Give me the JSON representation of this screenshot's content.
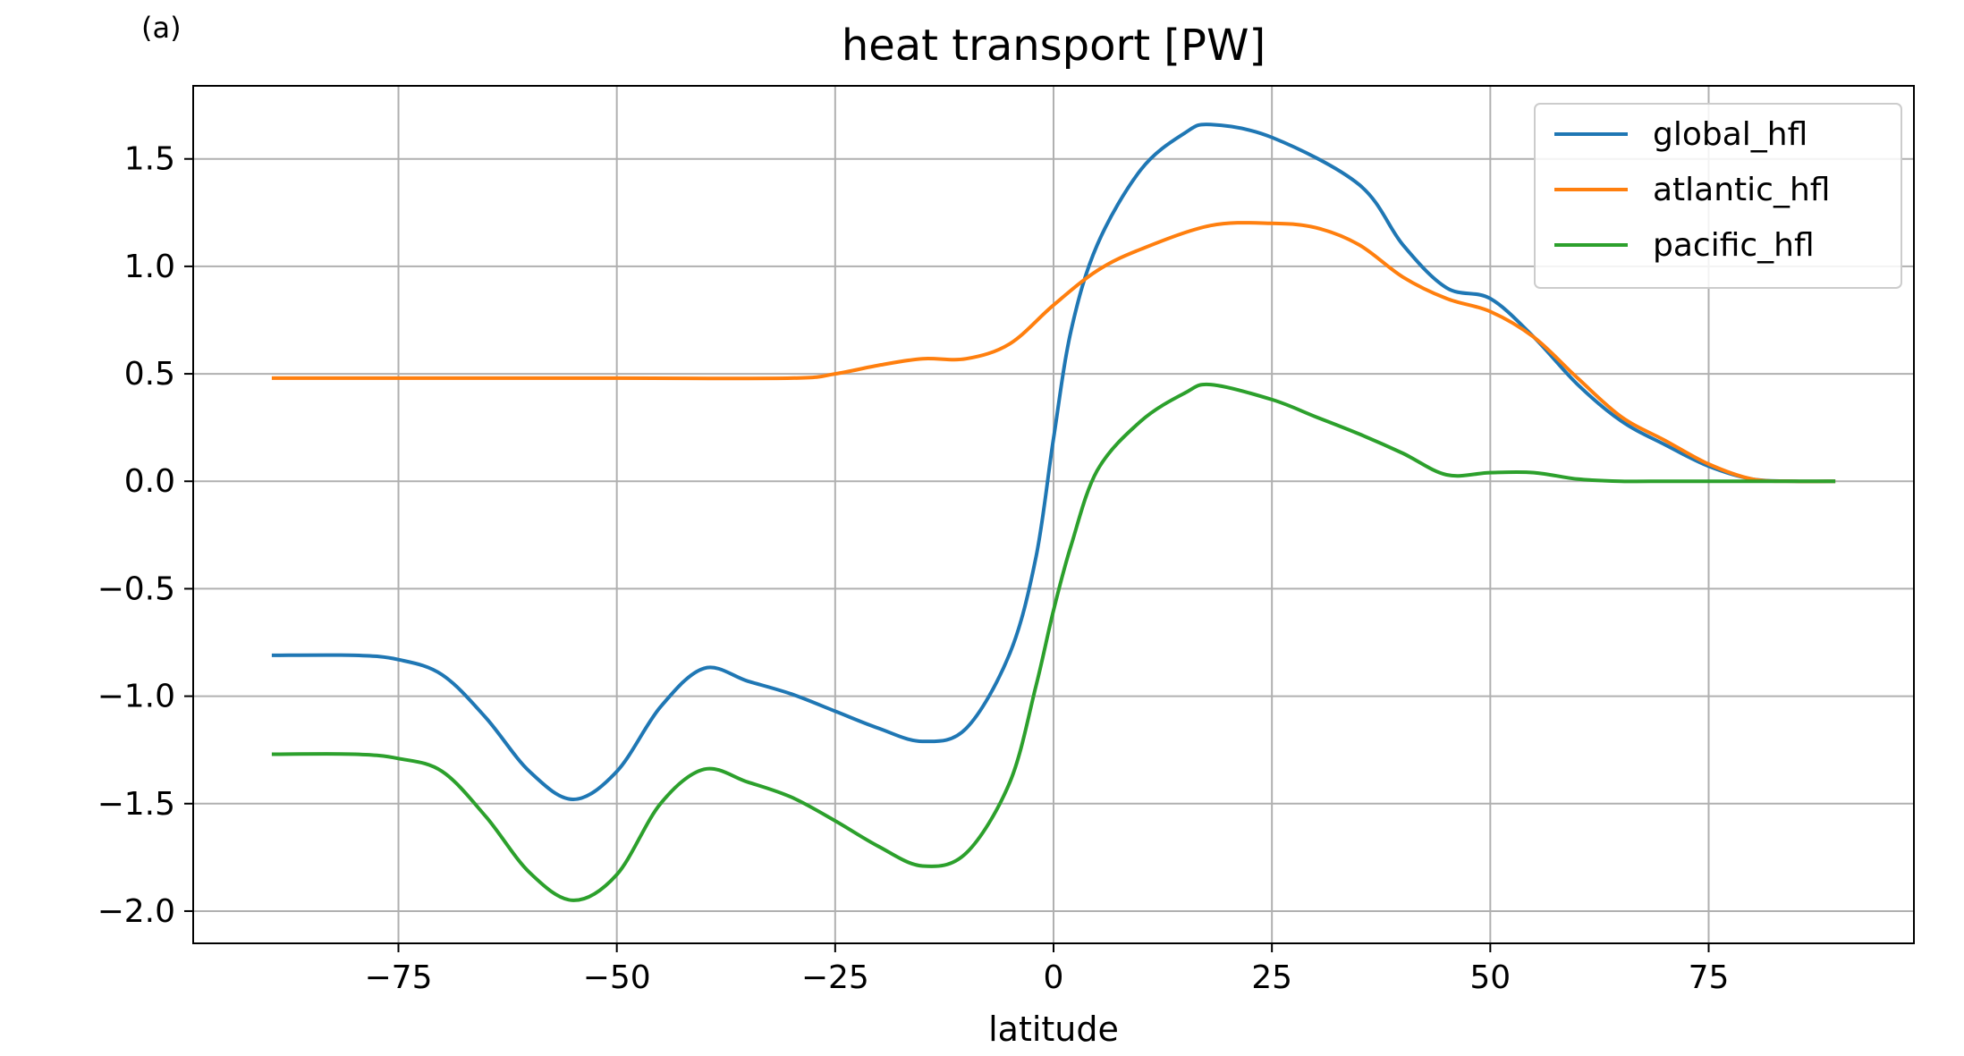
{
  "panel_label": "(a)",
  "chart_data": {
    "type": "line",
    "title": "heat transport [PW]",
    "xlabel": "latitude",
    "ylabel": "",
    "xlim": [
      -98.5,
      98.5
    ],
    "ylim": [
      -2.15,
      1.84
    ],
    "xticks": [
      -75,
      -50,
      -25,
      0,
      25,
      50,
      75
    ],
    "xtick_labels": [
      "−75",
      "−50",
      "−25",
      "0",
      "25",
      "50",
      "75"
    ],
    "yticks": [
      -2.0,
      -1.5,
      -1.0,
      -0.5,
      0.0,
      0.5,
      1.0,
      1.5
    ],
    "ytick_labels": [
      "−2.0",
      "−1.5",
      "−1.0",
      "−0.5",
      "0.0",
      "0.5",
      "1.0",
      "1.5"
    ],
    "grid": true,
    "legend_position": "top-right",
    "series": [
      {
        "name": "global_hfl",
        "color": "#1f77b4",
        "x": [
          -89.5,
          -80,
          -75,
          -70,
          -65,
          -60,
          -55,
          -50,
          -45,
          -40,
          -35,
          -30,
          -25,
          -20,
          -15,
          -10,
          -5,
          -2,
          0,
          2,
          5,
          10,
          15,
          18,
          25,
          35,
          40,
          45,
          50,
          55,
          60,
          65,
          70,
          75,
          80,
          85,
          89.5
        ],
        "y": [
          -0.81,
          -0.81,
          -0.83,
          -0.9,
          -1.1,
          -1.35,
          -1.48,
          -1.35,
          -1.05,
          -0.87,
          -0.93,
          -0.99,
          -1.07,
          -1.15,
          -1.21,
          -1.15,
          -0.8,
          -0.35,
          0.2,
          0.7,
          1.1,
          1.45,
          1.62,
          1.66,
          1.6,
          1.38,
          1.1,
          0.9,
          0.85,
          0.67,
          0.45,
          0.28,
          0.17,
          0.07,
          0.01,
          0.0,
          0.0
        ]
      },
      {
        "name": "atlantic_hfl",
        "color": "#ff7f0e",
        "x": [
          -89.5,
          -75,
          -50,
          -30,
          -25,
          -20,
          -15,
          -10,
          -5,
          0,
          5,
          10,
          18,
          25,
          30,
          35,
          40,
          45,
          50,
          55,
          60,
          65,
          70,
          75,
          80,
          85,
          89.5
        ],
        "y": [
          0.48,
          0.48,
          0.48,
          0.48,
          0.5,
          0.54,
          0.57,
          0.57,
          0.64,
          0.82,
          0.98,
          1.08,
          1.19,
          1.2,
          1.18,
          1.1,
          0.95,
          0.85,
          0.79,
          0.67,
          0.48,
          0.3,
          0.19,
          0.08,
          0.01,
          0.0,
          0.0
        ]
      },
      {
        "name": "pacific_hfl",
        "color": "#2ca02c",
        "x": [
          -89.5,
          -80,
          -75,
          -70,
          -65,
          -60,
          -55,
          -50,
          -45,
          -40,
          -35,
          -30,
          -25,
          -20,
          -15,
          -10,
          -5,
          -2,
          0,
          2,
          5,
          10,
          15,
          18,
          25,
          30,
          35,
          40,
          45,
          50,
          55,
          60,
          65,
          70,
          75,
          80,
          85,
          89.5
        ],
        "y": [
          -1.27,
          -1.27,
          -1.29,
          -1.35,
          -1.56,
          -1.82,
          -1.95,
          -1.83,
          -1.5,
          -1.34,
          -1.4,
          -1.47,
          -1.58,
          -1.7,
          -1.79,
          -1.73,
          -1.4,
          -0.95,
          -0.6,
          -0.3,
          0.05,
          0.28,
          0.41,
          0.45,
          0.38,
          0.3,
          0.22,
          0.13,
          0.03,
          0.04,
          0.04,
          0.01,
          0.0,
          0.0,
          0.0,
          0.0,
          0.0,
          0.0
        ]
      }
    ]
  }
}
